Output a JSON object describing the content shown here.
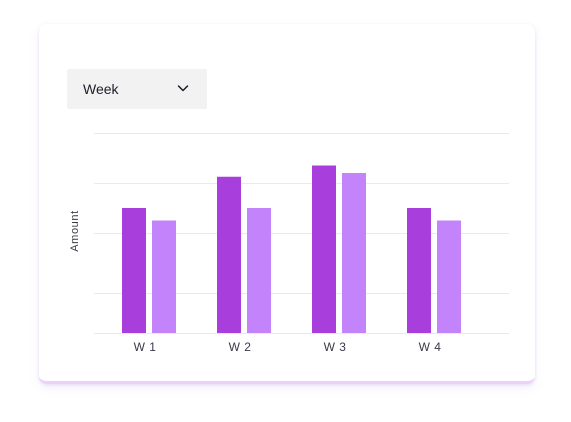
{
  "controls": {
    "period_select": {
      "selected": "Week",
      "icon": "chevron-down-icon"
    }
  },
  "colors": {
    "series_1": "#a83fdc",
    "series_2": "#c384fb",
    "grid": "#e9e9ef",
    "card_border": "#ead2fb"
  },
  "chart_data": {
    "type": "bar",
    "title": "",
    "xlabel": "",
    "ylabel": "Amount",
    "categories": [
      "W 1",
      "W 2",
      "W 3",
      "W 4"
    ],
    "series": [
      {
        "values": [
          5.0,
          6.25,
          6.7,
          5.0
        ]
      },
      {
        "values": [
          4.5,
          5.0,
          6.4,
          4.5
        ]
      }
    ],
    "ylim": [
      0,
      8
    ],
    "gridlines_at": [
      0,
      1.6,
      4,
      6,
      8
    ],
    "y_tick_labels_shown": false,
    "grid": true,
    "legend": "none"
  }
}
